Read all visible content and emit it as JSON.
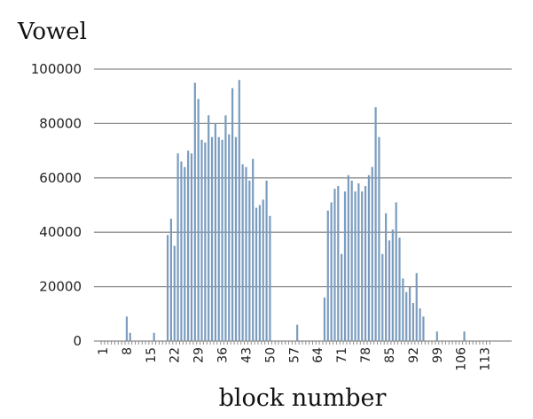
{
  "chart_data": {
    "type": "bar",
    "title": "Vowel",
    "xlabel": "block number",
    "ylabel": "",
    "ylim": [
      0,
      100000
    ],
    "yticks": [
      0,
      20000,
      40000,
      60000,
      80000,
      100000
    ],
    "ytick_labels": [
      "0",
      "20000",
      "40000",
      "60000",
      "80000",
      "100000"
    ],
    "xtick_labels": [
      "1",
      "8",
      "15",
      "22",
      "29",
      "36",
      "43",
      "50",
      "57",
      "64",
      "71",
      "78",
      "85",
      "92",
      "99",
      "106",
      "113"
    ],
    "grid": true,
    "bar_color": "#7a9cbf",
    "categories": [
      1,
      2,
      3,
      4,
      5,
      6,
      7,
      8,
      9,
      10,
      11,
      12,
      13,
      14,
      15,
      16,
      17,
      18,
      19,
      20,
      21,
      22,
      23,
      24,
      25,
      26,
      27,
      28,
      29,
      30,
      31,
      32,
      33,
      34,
      35,
      36,
      37,
      38,
      39,
      40,
      41,
      42,
      43,
      44,
      45,
      46,
      47,
      48,
      49,
      50,
      51,
      52,
      53,
      54,
      55,
      56,
      57,
      58,
      59,
      60,
      61,
      62,
      63,
      64,
      65,
      66,
      67,
      68,
      69,
      70,
      71,
      72,
      73,
      74,
      75,
      76,
      77,
      78,
      79,
      80,
      81,
      82,
      83,
      84,
      85,
      86,
      87,
      88,
      89,
      90,
      91,
      92,
      93,
      94,
      95,
      96,
      97,
      98,
      99,
      100,
      101,
      102,
      103,
      104,
      105,
      106,
      107,
      108,
      109,
      110,
      111,
      112,
      113,
      114,
      115
    ],
    "values": [
      0,
      0,
      0,
      0,
      0,
      0,
      0,
      9000,
      3000,
      0,
      0,
      0,
      0,
      0,
      0,
      3000,
      0,
      0,
      0,
      39000,
      45000,
      35000,
      69000,
      66000,
      64000,
      70000,
      69000,
      95000,
      89000,
      74000,
      73000,
      83000,
      75000,
      80000,
      75000,
      74000,
      83000,
      76000,
      93000,
      75000,
      96000,
      65000,
      64000,
      59000,
      67000,
      49000,
      50000,
      52000,
      59000,
      46000,
      0,
      0,
      0,
      0,
      0,
      0,
      0,
      6000,
      0,
      0,
      0,
      0,
      0,
      0,
      0,
      16000,
      48000,
      51000,
      56000,
      57000,
      32000,
      55000,
      61000,
      59000,
      55000,
      58000,
      55000,
      57000,
      61000,
      64000,
      86000,
      75000,
      32000,
      47000,
      37000,
      41000,
      51000,
      38000,
      23000,
      18000,
      20000,
      14000,
      25000,
      12000,
      9000,
      0,
      0,
      0,
      3500,
      0,
      0,
      0,
      0,
      0,
      0,
      0,
      3500,
      0,
      0,
      0,
      0,
      0,
      0,
      0,
      0
    ]
  }
}
